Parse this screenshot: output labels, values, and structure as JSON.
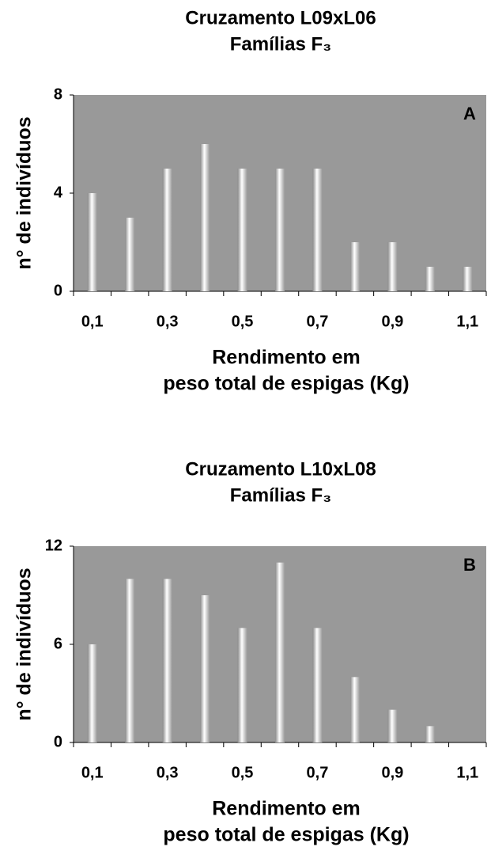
{
  "chart_data": [
    {
      "type": "bar",
      "title": "Cruzamento L09xL06",
      "subtitle": "Famílias F₃",
      "panel_label": "A",
      "x_label": [
        "Rendimento em",
        "peso total de espigas (Kg)"
      ],
      "y_label": "n° de indivíduos",
      "categories": [
        "0,1",
        null,
        "0,3",
        null,
        "0,5",
        null,
        "0,7",
        null,
        "0,9",
        null,
        "1,1"
      ],
      "values": [
        4,
        3,
        5,
        6,
        5,
        5,
        5,
        2,
        2,
        1,
        1
      ],
      "ylim": [
        0,
        8
      ],
      "yticks": [
        0,
        4,
        8
      ],
      "background": "#999999"
    },
    {
      "type": "bar",
      "title": "Cruzamento L10xL08",
      "subtitle": "Famílias F₃",
      "panel_label": "B",
      "x_label": [
        "Rendimento em",
        "peso total de espigas (Kg)"
      ],
      "y_label": "n° de indivíduos",
      "categories": [
        "0,1",
        null,
        "0,3",
        null,
        "0,5",
        null,
        "0,7",
        null,
        "0,9",
        null,
        "1,1"
      ],
      "values": [
        6,
        10,
        10,
        9,
        7,
        11,
        7,
        4,
        2,
        1,
        0
      ],
      "ylim": [
        0,
        12
      ],
      "yticks": [
        0,
        6,
        12
      ],
      "background": "#999999"
    }
  ]
}
